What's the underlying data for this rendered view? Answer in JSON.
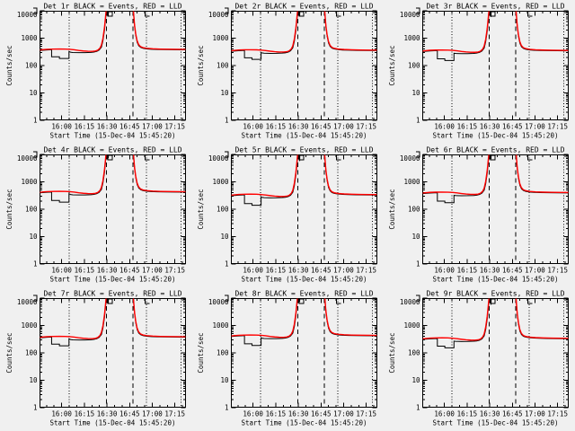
{
  "figure": {
    "bg_color": "#f0f0f0",
    "axis_color": "#000000",
    "events_color": "#000000",
    "lld_color": "#ff0000"
  },
  "axes": {
    "ylabel": "Counts/sec",
    "xlabel": "Start Time (15-Dec-04 15:45:20)",
    "ytick_labels": [
      "1",
      "10",
      "100",
      "1000",
      "10000"
    ],
    "xtick_labels": [
      "16:00",
      "16:15",
      "16:30",
      "16:45",
      "17:00",
      "17:15"
    ],
    "xtick_minutes": [
      14.67,
      29.67,
      44.67,
      59.67,
      74.67,
      89.67
    ],
    "minor_xtick_start_min": 4.67,
    "minor_xtick_step_min": 5,
    "x_range_min": [
      0,
      97
    ],
    "ylim": [
      1,
      10000
    ],
    "yscale": "log",
    "dotted_vlines_min": [
      19.6,
      70.8,
      93.8
    ],
    "dashed_vlines_min": [
      44.4,
      62.0
    ],
    "flag_marker_square_min": 45.2,
    "flag_marker_L_min": 70.0
  },
  "panels": [
    {
      "id": "det-1r",
      "title": "Det 1r BLACK = Events, RED = LLD",
      "dip": [
        8,
        19.5,
        195
      ],
      "scale": 1.0
    },
    {
      "id": "det-2r",
      "title": "Det 2r BLACK = Events, RED = LLD",
      "dip": [
        9,
        20,
        180
      ],
      "scale": 0.94
    },
    {
      "id": "det-3r",
      "title": "Det 3r BLACK = Events, RED = LLD",
      "dip": [
        10,
        21,
        165
      ],
      "scale": 0.92
    },
    {
      "id": "det-4r",
      "title": "Det 4r BLACK = Events, RED = LLD",
      "dip": [
        8,
        19.5,
        195
      ],
      "scale": 1.12
    },
    {
      "id": "det-5r",
      "title": "Det 5r BLACK = Events, RED = LLD",
      "dip": [
        9,
        20,
        150
      ],
      "scale": 0.88
    },
    {
      "id": "det-6r",
      "title": "Det 6r BLACK = Events, RED = LLD",
      "dip": [
        10,
        21,
        185
      ],
      "scale": 1.05
    },
    {
      "id": "det-7r",
      "title": "Det 7r BLACK = Events, RED = LLD",
      "dip": [
        8,
        19.5,
        195
      ],
      "scale": 1.0
    },
    {
      "id": "det-8r",
      "title": "Det 8r BLACK = Events, RED = LLD",
      "dip": [
        9,
        20,
        200
      ],
      "scale": 1.12
    },
    {
      "id": "det-9r",
      "title": "Det 9r BLACK = Events, RED = LLD",
      "dip": [
        10,
        21,
        165
      ],
      "scale": 0.88
    }
  ],
  "chart_data": {
    "type": "line",
    "layout": "3x3 grid, one panel per detector Det 1r..Det 9r",
    "title_pattern": "Det {n}r BLACK = Events, RED = LLD",
    "xlabel": "Start Time (15-Dec-04 15:45:20)",
    "ylabel": "Counts/sec",
    "yscale": "log",
    "ylim": [
      1,
      10000
    ],
    "x_unit": "minutes after 2004-12-15 15:45:20 UT",
    "x_range": [
      0,
      97
    ],
    "xtick_times": [
      "16:00",
      "16:15",
      "16:30",
      "16:45",
      "17:00",
      "17:15"
    ],
    "grid": false,
    "legend": "in title: BLACK = Events, RED = LLD",
    "series": [
      {
        "name": "Events",
        "color": "#000000",
        "points": [
          [
            0,
            352
          ],
          [
            2,
            360
          ],
          [
            5,
            370
          ],
          [
            8,
            378
          ],
          [
            11,
            381
          ],
          [
            14,
            378
          ],
          [
            16,
            370
          ],
          [
            18,
            356
          ],
          [
            19.5,
            330
          ],
          [
            20.5,
            308
          ],
          [
            22,
            300
          ],
          [
            26,
            296
          ],
          [
            30,
            297
          ],
          [
            34,
            302
          ],
          [
            36,
            310
          ],
          [
            38,
            330
          ],
          [
            39.5,
            368
          ],
          [
            41,
            470
          ],
          [
            42,
            800
          ],
          [
            43,
            1900
          ],
          [
            43.7,
            4700
          ],
          [
            44.3,
            10500
          ],
          [
            44.8,
            25000
          ],
          [
            45.3,
            25000
          ],
          [
            45.55,
            6500
          ],
          [
            45.8,
            25000
          ],
          [
            53,
            25000
          ],
          [
            61.8,
            25000
          ],
          [
            62.3,
            8000
          ],
          [
            63,
            2600
          ],
          [
            63.8,
            1200
          ],
          [
            64.7,
            700
          ],
          [
            65.7,
            530
          ],
          [
            67,
            458
          ],
          [
            68.5,
            428
          ],
          [
            71,
            405
          ],
          [
            74,
            393
          ],
          [
            78,
            386
          ],
          [
            83,
            381
          ],
          [
            89,
            377
          ],
          [
            97,
            373
          ]
        ]
      },
      {
        "name": "LLD",
        "color": "#ff0000",
        "points": [
          [
            0,
            368
          ],
          [
            2,
            380
          ],
          [
            5,
            392
          ],
          [
            9,
            400
          ],
          [
            13,
            402
          ],
          [
            17,
            399
          ],
          [
            20,
            390
          ],
          [
            23,
            375
          ],
          [
            26,
            356
          ],
          [
            29,
            341
          ],
          [
            32,
            333
          ],
          [
            35,
            331
          ],
          [
            37,
            340
          ],
          [
            38.5,
            362
          ],
          [
            40,
            430
          ],
          [
            41,
            560
          ],
          [
            42,
            980
          ],
          [
            43,
            2400
          ],
          [
            43.7,
            5800
          ],
          [
            44.3,
            13000
          ],
          [
            44.9,
            25000
          ],
          [
            53,
            25000
          ],
          [
            61.7,
            25000
          ],
          [
            62.2,
            9500
          ],
          [
            62.9,
            3100
          ],
          [
            63.7,
            1450
          ],
          [
            64.6,
            820
          ],
          [
            65.6,
            590
          ],
          [
            66.9,
            490
          ],
          [
            68.5,
            452
          ],
          [
            71,
            426
          ],
          [
            75,
            410
          ],
          [
            80,
            400
          ],
          [
            86,
            394
          ],
          [
            92,
            390
          ],
          [
            97,
            388
          ]
        ]
      }
    ],
    "annotations": {
      "dotted_vlines_times": [
        "16:05",
        "16:56",
        "17:19"
      ],
      "dashed_vlines_times": [
        "16:30",
        "16:47"
      ],
      "notes": "Events (black) shows a step dip to ~150-200 c/s before the 16:05 dotted line in every panel; both curves saturate above 10000 c/s between ~16:30 and ~16:47 then return to ~400 c/s."
    }
  }
}
